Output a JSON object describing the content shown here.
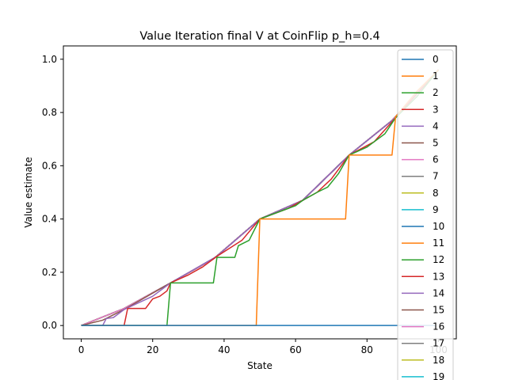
{
  "chart_data": {
    "type": "line",
    "title": "Value Iteration final V at CoinFlip p_h=0.4",
    "xlabel": "State",
    "ylabel": "Value estimate",
    "xlim": [
      -5,
      105
    ],
    "ylim": [
      -0.05,
      1.05
    ],
    "xticks": [
      0,
      20,
      40,
      60,
      80,
      100
    ],
    "yticks": [
      0.0,
      0.2,
      0.4,
      0.6,
      0.8,
      1.0
    ],
    "xtick_labels": [
      "0",
      "20",
      "40",
      "60",
      "80",
      "100"
    ],
    "ytick_labels": [
      "0.0",
      "0.2",
      "0.4",
      "0.6",
      "0.8",
      "1.0"
    ],
    "grid": false,
    "legend": "right (overflowing bottom)",
    "legend_entries": [
      "0",
      "1",
      "2",
      "3",
      "4",
      "5",
      "6",
      "7",
      "8",
      "9",
      "10",
      "11",
      "12",
      "13",
      "14",
      "15",
      "16",
      "17",
      "18",
      "19"
    ],
    "colors": [
      "#1f77b4",
      "#ff7f0e",
      "#2ca02c",
      "#d62728",
      "#9467bd",
      "#8c564b",
      "#e377c2",
      "#7f7f7f",
      "#bcbd22",
      "#17becf"
    ],
    "series": [
      {
        "name": "0",
        "points": [
          [
            0,
            0
          ],
          [
            99,
            0
          ]
        ]
      },
      {
        "name": "1",
        "points": [
          [
            0,
            0
          ],
          [
            49,
            0
          ],
          [
            50,
            0.4
          ],
          [
            74,
            0.4
          ],
          [
            75,
            0.64
          ],
          [
            87,
            0.64
          ],
          [
            88,
            0.784
          ],
          [
            94,
            0.88
          ],
          [
            100,
            0.96
          ]
        ]
      },
      {
        "name": "2",
        "points": [
          [
            0,
            0
          ],
          [
            24,
            0
          ],
          [
            25,
            0.16
          ],
          [
            37,
            0.16
          ],
          [
            38,
            0.256
          ],
          [
            43,
            0.256
          ],
          [
            44,
            0.3
          ],
          [
            47,
            0.32
          ],
          [
            50,
            0.4
          ],
          [
            60,
            0.45
          ],
          [
            62,
            0.47
          ],
          [
            66,
            0.5
          ],
          [
            69,
            0.52
          ],
          [
            72,
            0.57
          ],
          [
            75,
            0.64
          ],
          [
            80,
            0.67
          ],
          [
            85,
            0.72
          ],
          [
            88,
            0.78
          ],
          [
            91,
            0.82
          ],
          [
            94,
            0.86
          ],
          [
            100,
            0.96
          ]
        ]
      },
      {
        "name": "3",
        "points": [
          [
            0,
            0
          ],
          [
            12,
            0
          ],
          [
            13,
            0.064
          ],
          [
            18,
            0.064
          ],
          [
            20,
            0.1
          ],
          [
            22,
            0.11
          ],
          [
            24,
            0.13
          ],
          [
            25,
            0.16
          ],
          [
            30,
            0.19
          ],
          [
            34,
            0.22
          ],
          [
            38,
            0.26
          ],
          [
            45,
            0.32
          ],
          [
            50,
            0.4
          ],
          [
            58,
            0.44
          ],
          [
            62,
            0.47
          ],
          [
            66,
            0.5
          ],
          [
            70,
            0.55
          ],
          [
            75,
            0.64
          ],
          [
            82,
            0.69
          ],
          [
            88,
            0.78
          ],
          [
            94,
            0.87
          ],
          [
            100,
            0.96
          ]
        ]
      },
      {
        "name": "4",
        "points": [
          [
            0,
            0
          ],
          [
            6,
            0
          ],
          [
            7,
            0.026
          ],
          [
            9,
            0.03
          ],
          [
            12,
            0.06
          ],
          [
            20,
            0.11
          ],
          [
            25,
            0.16
          ],
          [
            38,
            0.26
          ],
          [
            50,
            0.4
          ],
          [
            62,
            0.47
          ],
          [
            75,
            0.64
          ],
          [
            88,
            0.78
          ],
          [
            100,
            0.96
          ]
        ]
      },
      {
        "name": "5",
        "points": [
          [
            0,
            0
          ],
          [
            3,
            0.01
          ],
          [
            6,
            0.02
          ],
          [
            12,
            0.06
          ],
          [
            25,
            0.16
          ],
          [
            38,
            0.26
          ],
          [
            50,
            0.4
          ],
          [
            62,
            0.47
          ],
          [
            75,
            0.64
          ],
          [
            88,
            0.78
          ],
          [
            100,
            0.96
          ]
        ]
      },
      {
        "name": "6",
        "points": [
          [
            0,
            0
          ],
          [
            12,
            0.064
          ],
          [
            25,
            0.16
          ],
          [
            37,
            0.25
          ],
          [
            50,
            0.4
          ],
          [
            62,
            0.47
          ],
          [
            75,
            0.64
          ],
          [
            87,
            0.77
          ],
          [
            100,
            0.96
          ]
        ]
      },
      {
        "name": "7",
        "points": [
          [
            0,
            0
          ],
          [
            12,
            0.064
          ],
          [
            25,
            0.16
          ],
          [
            37,
            0.25
          ],
          [
            50,
            0.4
          ],
          [
            62,
            0.47
          ],
          [
            75,
            0.64
          ],
          [
            87,
            0.77
          ],
          [
            100,
            0.96
          ]
        ]
      },
      {
        "name": "8",
        "points": [
          [
            0,
            0
          ],
          [
            12,
            0.064
          ],
          [
            25,
            0.16
          ],
          [
            37,
            0.25
          ],
          [
            50,
            0.4
          ],
          [
            62,
            0.47
          ],
          [
            75,
            0.64
          ],
          [
            87,
            0.77
          ],
          [
            100,
            0.96
          ]
        ]
      },
      {
        "name": "9",
        "points": [
          [
            0,
            0
          ],
          [
            12,
            0.064
          ],
          [
            25,
            0.16
          ],
          [
            37,
            0.25
          ],
          [
            50,
            0.4
          ],
          [
            62,
            0.47
          ],
          [
            75,
            0.64
          ],
          [
            87,
            0.77
          ],
          [
            100,
            0.96
          ]
        ]
      },
      {
        "name": "10",
        "points": [
          [
            0,
            0
          ],
          [
            12,
            0.064
          ],
          [
            25,
            0.16
          ],
          [
            37,
            0.25
          ],
          [
            50,
            0.4
          ],
          [
            62,
            0.47
          ],
          [
            75,
            0.64
          ],
          [
            87,
            0.77
          ],
          [
            100,
            0.96
          ]
        ]
      },
      {
        "name": "11",
        "points": [
          [
            0,
            0
          ],
          [
            12,
            0.064
          ],
          [
            25,
            0.16
          ],
          [
            37,
            0.25
          ],
          [
            50,
            0.4
          ],
          [
            62,
            0.47
          ],
          [
            75,
            0.64
          ],
          [
            87,
            0.77
          ],
          [
            100,
            0.96
          ]
        ]
      },
      {
        "name": "12",
        "points": [
          [
            0,
            0
          ],
          [
            12,
            0.064
          ],
          [
            25,
            0.16
          ],
          [
            37,
            0.25
          ],
          [
            50,
            0.4
          ],
          [
            62,
            0.47
          ],
          [
            75,
            0.64
          ],
          [
            87,
            0.77
          ],
          [
            100,
            0.96
          ]
        ]
      },
      {
        "name": "13",
        "points": [
          [
            0,
            0
          ],
          [
            12,
            0.064
          ],
          [
            25,
            0.16
          ],
          [
            37,
            0.25
          ],
          [
            50,
            0.4
          ],
          [
            62,
            0.47
          ],
          [
            75,
            0.64
          ],
          [
            87,
            0.77
          ],
          [
            100,
            0.96
          ]
        ]
      },
      {
        "name": "14",
        "points": [
          [
            0,
            0
          ],
          [
            12,
            0.064
          ],
          [
            25,
            0.16
          ],
          [
            37,
            0.25
          ],
          [
            50,
            0.4
          ],
          [
            62,
            0.47
          ],
          [
            75,
            0.64
          ],
          [
            87,
            0.77
          ],
          [
            100,
            0.96
          ]
        ]
      },
      {
        "name": "15",
        "points": [
          [
            0,
            0
          ],
          [
            12,
            0.064
          ],
          [
            25,
            0.16
          ],
          [
            37,
            0.25
          ],
          [
            50,
            0.4
          ],
          [
            62,
            0.47
          ],
          [
            75,
            0.64
          ],
          [
            87,
            0.77
          ],
          [
            100,
            0.96
          ]
        ]
      },
      {
        "name": "16",
        "points": [
          [
            0,
            0
          ],
          [
            12,
            0.064
          ],
          [
            25,
            0.16
          ],
          [
            37,
            0.25
          ],
          [
            50,
            0.4
          ],
          [
            62,
            0.47
          ],
          [
            75,
            0.64
          ],
          [
            87,
            0.77
          ],
          [
            100,
            0.96
          ]
        ]
      },
      {
        "name": "17",
        "points": [
          [
            0,
            0
          ],
          [
            12,
            0.064
          ],
          [
            25,
            0.16
          ],
          [
            37,
            0.25
          ],
          [
            50,
            0.4
          ],
          [
            62,
            0.47
          ],
          [
            75,
            0.64
          ],
          [
            87,
            0.77
          ],
          [
            100,
            0.96
          ]
        ]
      },
      {
        "name": "18",
        "points": [
          [
            0,
            0
          ],
          [
            12,
            0.064
          ],
          [
            25,
            0.16
          ],
          [
            37,
            0.25
          ],
          [
            50,
            0.4
          ],
          [
            62,
            0.47
          ],
          [
            75,
            0.64
          ],
          [
            87,
            0.77
          ],
          [
            100,
            0.96
          ]
        ]
      },
      {
        "name": "19",
        "points": [
          [
            0,
            0
          ],
          [
            12,
            0.064
          ],
          [
            25,
            0.16
          ],
          [
            37,
            0.25
          ],
          [
            50,
            0.4
          ],
          [
            62,
            0.47
          ],
          [
            75,
            0.64
          ],
          [
            87,
            0.77
          ],
          [
            100,
            0.96
          ]
        ]
      }
    ]
  }
}
